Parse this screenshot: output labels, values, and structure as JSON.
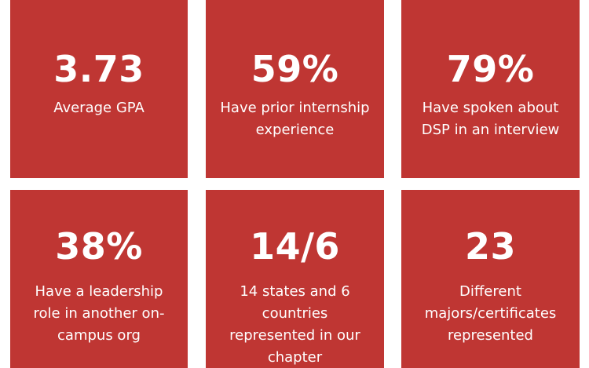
{
  "cards": [
    {
      "value": "3.73",
      "label": "Average GPA"
    },
    {
      "value": "59%",
      "label": "Have prior internship\nexperience"
    },
    {
      "value": "79%",
      "label": "Have spoken about\nDSP in an interview"
    },
    {
      "value": "38%",
      "label": "Have a leadership\nrole in another on-\ncampus org"
    },
    {
      "value": "14/6",
      "label": "14 states and 6\ncountries\nrepresented in our\nchapter"
    },
    {
      "value": "23",
      "label": "Different\nmajors/certificates\nrepresented"
    }
  ],
  "colors": {
    "card_background": "#bf3633",
    "text": "#ffffff",
    "page_background": "#ffffff"
  }
}
